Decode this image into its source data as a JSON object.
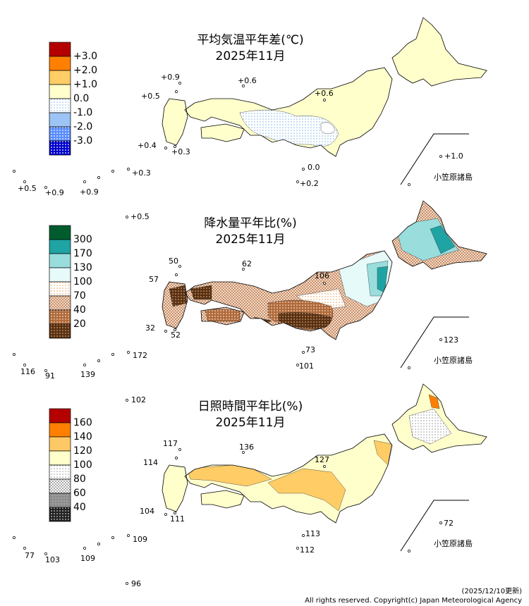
{
  "panels": [
    {
      "title": "平均気温平年差(℃)",
      "period": "2025年11月",
      "legend": [
        "+3.0",
        "+2.0",
        "+1.0",
        "0.0",
        "-1.0",
        "-2.0",
        "-3.0"
      ],
      "stations": [
        "+0.9",
        "+0.6",
        "+0.5",
        "+0.6",
        "+0.4",
        "+0.3",
        "+0.3",
        "0.0",
        "+0.2",
        "+0.5",
        "+0.9",
        "+0.9",
        "+1.0",
        "+0.5"
      ],
      "inset_label": "小笠原諸島"
    },
    {
      "title": "降水量平年比(%)",
      "period": "2025年11月",
      "legend": [
        "300",
        "170",
        "130",
        "100",
        "70",
        "40",
        "20"
      ],
      "stations": [
        "50",
        "62",
        "57",
        "106",
        "32",
        "52",
        "73",
        "101",
        "116",
        "91",
        "139",
        "172",
        "123",
        "102"
      ],
      "inset_label": "小笠原諸島"
    },
    {
      "title": "日照時間平年比(%)",
      "period": "2025年11月",
      "legend": [
        "160",
        "140",
        "120",
        "100",
        "80",
        "60",
        "40"
      ],
      "stations": [
        "117",
        "136",
        "114",
        "127",
        "104",
        "111",
        "113",
        "112",
        "77",
        "103",
        "109",
        "109",
        "72",
        "96"
      ],
      "inset_label": "小笠原諸島"
    }
  ],
  "footer": {
    "updated": "(2025/12/10更新)",
    "copyright": "All rights reserved. Copyright(c) Japan Meteorological Agency"
  }
}
